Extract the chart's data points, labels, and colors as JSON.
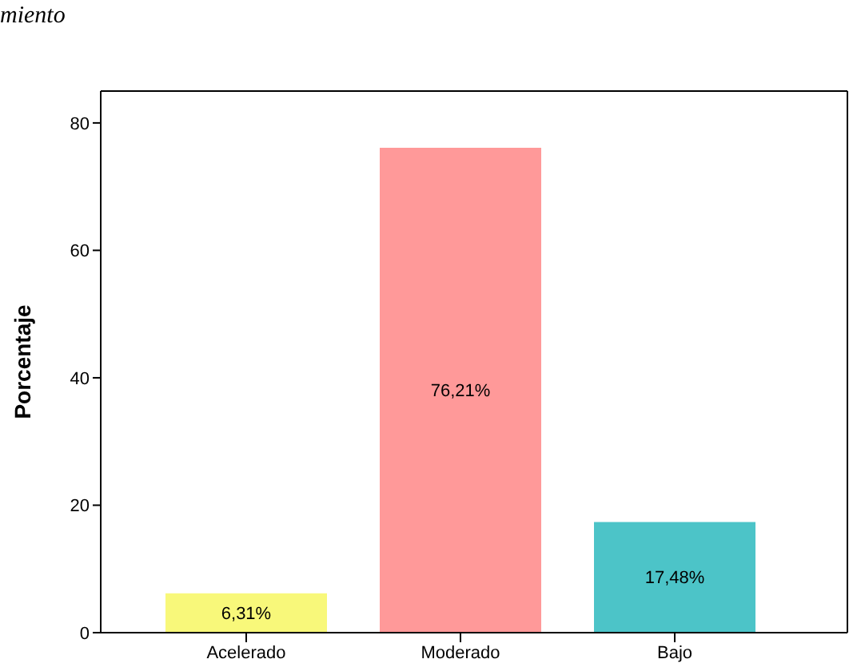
{
  "chart_data": {
    "type": "bar",
    "title": "miento",
    "categories": [
      "Acelerado",
      "Moderado",
      "Bajo"
    ],
    "values": [
      6.31,
      76.21,
      17.48
    ],
    "colors": [
      "#f8f87a",
      "#ff9999",
      "#4cc4c8"
    ],
    "value_labels": [
      "6,31%",
      "76,21%",
      "17,48%"
    ],
    "ylabel": "Porcentaje",
    "ylim": [
      0,
      85
    ],
    "yticks": [
      0,
      20,
      40,
      60,
      80
    ]
  }
}
